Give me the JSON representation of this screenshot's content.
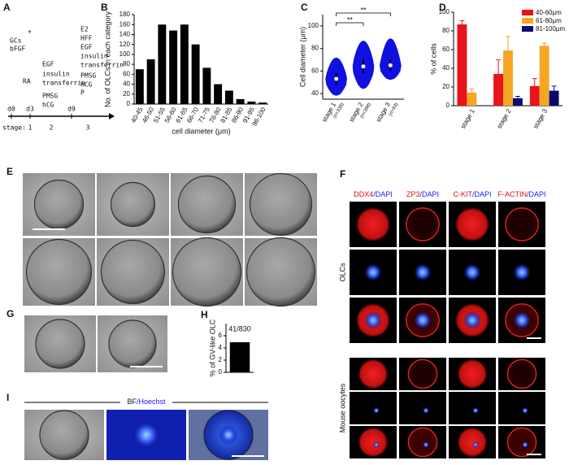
{
  "panel_a": {
    "panel": "A",
    "gcs": [
      "GCs",
      "bFGF"
    ],
    "plus": "+",
    "ra": "RA",
    "stage2_factors": [
      "EGF",
      "insulin",
      "transferrin",
      "PMSG",
      "hCG"
    ],
    "stage3_factors": [
      "E2",
      "HFF",
      "EGF",
      "insulin",
      "transferrin",
      "PMSG",
      "hCG",
      "P"
    ],
    "days": [
      "d0",
      "d3",
      "d9"
    ],
    "stage_label": "stage:",
    "stages": [
      "1",
      "2",
      "3"
    ]
  },
  "chart_data": [
    {
      "type": "bar",
      "panel": "B",
      "ylabel": "No. of OLCs in each category",
      "xlabel": "cell diameter (μm)",
      "categories": [
        "40-45",
        "46-50",
        "51-55",
        "56-60",
        "61-65",
        "66-70",
        "71-75",
        "76-80",
        "81-85",
        "86-90",
        "91-95",
        "96-100"
      ],
      "values": [
        70,
        90,
        160,
        148,
        160,
        120,
        73,
        40,
        27,
        10,
        5,
        3
      ],
      "color": "#000000",
      "ylim": [
        0,
        180
      ],
      "yticks": [
        0,
        20,
        40,
        60,
        80,
        100,
        120,
        140,
        160,
        180
      ]
    },
    {
      "type": "violin",
      "panel": "C",
      "ylabel": "Cell diameter (μm)",
      "color": "#1010e0",
      "categories": [
        "stage 1",
        "stage 2",
        "stage 3"
      ],
      "n_labels": [
        "(n=338)",
        "(n=398)",
        "(n=93)"
      ],
      "stats": [
        {
          "min": 38,
          "q1": 48,
          "median": 53,
          "q3": 58,
          "max": 72
        },
        {
          "min": 44,
          "q1": 58,
          "median": 64,
          "q3": 70,
          "max": 87
        },
        {
          "min": 52,
          "q1": 60,
          "median": 65,
          "q3": 70,
          "max": 89
        }
      ],
      "significance_labels": [
        "**",
        "**"
      ],
      "ylim": [
        35,
        110
      ],
      "yticks": [
        40,
        60,
        80,
        100
      ]
    },
    {
      "type": "grouped_bar",
      "panel": "D",
      "ylabel": "% of cells",
      "categories": [
        "stage 1",
        "stage 2",
        "stage 3"
      ],
      "series": [
        {
          "name": "40-60μm",
          "color": "#e8141b",
          "values": [
            87,
            34,
            21
          ],
          "errors": [
            4,
            15,
            8
          ]
        },
        {
          "name": "61-80μm",
          "color": "#f5a623",
          "values": [
            14,
            59,
            64
          ],
          "errors": [
            4,
            15,
            3
          ]
        },
        {
          "name": "81-100μm",
          "color": "#0a0a6e",
          "values": [
            null,
            8,
            16
          ],
          "errors": [
            null,
            2,
            5
          ]
        }
      ],
      "ylim": [
        0,
        100
      ],
      "yticks": [
        0,
        20,
        40,
        60,
        80,
        100
      ]
    },
    {
      "type": "bar",
      "panel": "H",
      "ylabel": "% of GV-like OLC",
      "annotation": "41/830",
      "values": [
        4.94
      ],
      "color": "#000000",
      "ylim": [
        0,
        8
      ],
      "yticks": [
        0,
        2,
        4,
        6
      ]
    }
  ],
  "panel_e": {
    "panel": "E"
  },
  "panel_f": {
    "panel": "F",
    "columns": [
      [
        "DDX4",
        "/DAPI"
      ],
      [
        "ZP3",
        "/DAPI"
      ],
      [
        "C-KIT",
        "/DAPI"
      ],
      [
        "F-ACTIN",
        "/DAPI"
      ]
    ],
    "rows": [
      "OLCs",
      "Mouse oocytes"
    ]
  },
  "panel_g": {
    "panel": "G"
  },
  "panel_i": {
    "panel": "I",
    "header": "BF/Hoechst"
  }
}
